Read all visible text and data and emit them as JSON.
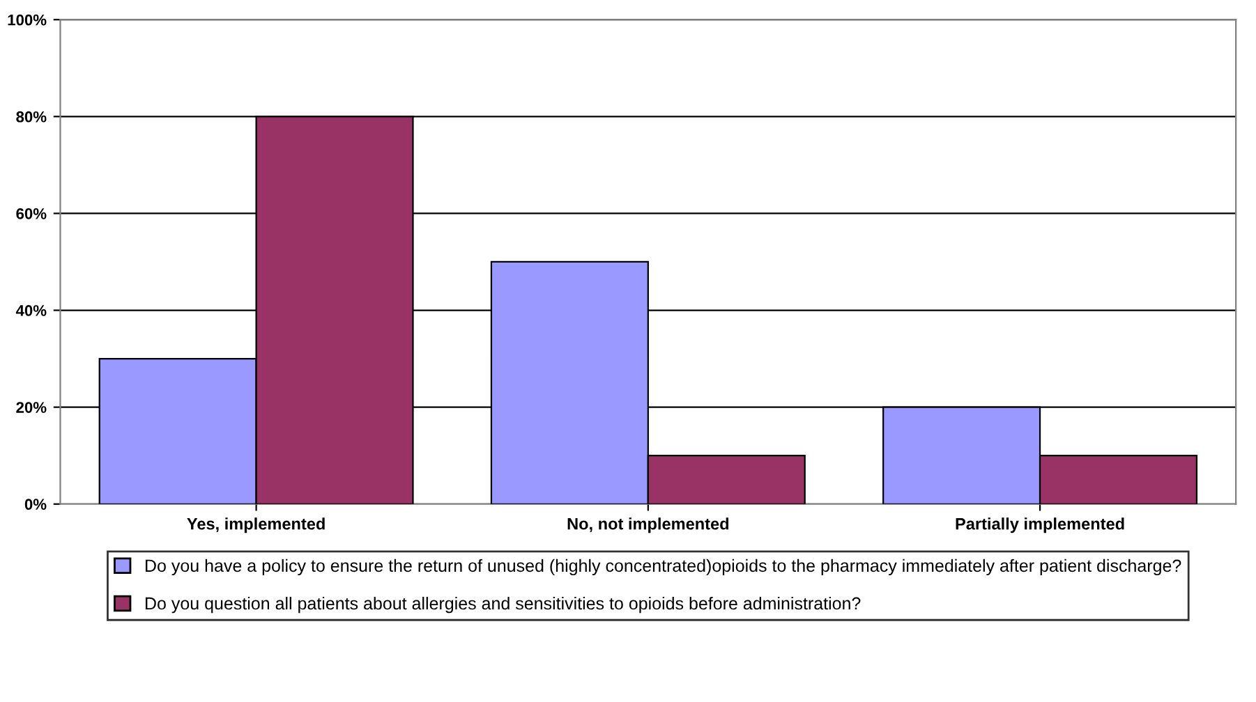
{
  "chart_data": {
    "type": "bar",
    "categories": [
      "Yes, implemented",
      "No, not implemented",
      "Partially implemented"
    ],
    "series": [
      {
        "name": "Do you have a policy to ensure the return of unused (highly concentrated)opioids to the pharmacy immediately after patient discharge?",
        "color": "#9999ff",
        "values": [
          30,
          50,
          20
        ]
      },
      {
        "name": "Do you question all patients about allergies and sensitivities to opioids before administration?",
        "color": "#993366",
        "values": [
          80,
          10,
          10
        ]
      }
    ],
    "ylim": [
      0,
      100
    ],
    "yticks": [
      {
        "value": 0,
        "label": "0%"
      },
      {
        "value": 20,
        "label": "20%"
      },
      {
        "value": 40,
        "label": "40%"
      },
      {
        "value": 60,
        "label": "60%"
      },
      {
        "value": 80,
        "label": "80%"
      },
      {
        "value": 100,
        "label": "100%"
      }
    ],
    "grid": "y",
    "legend": "bottom"
  }
}
